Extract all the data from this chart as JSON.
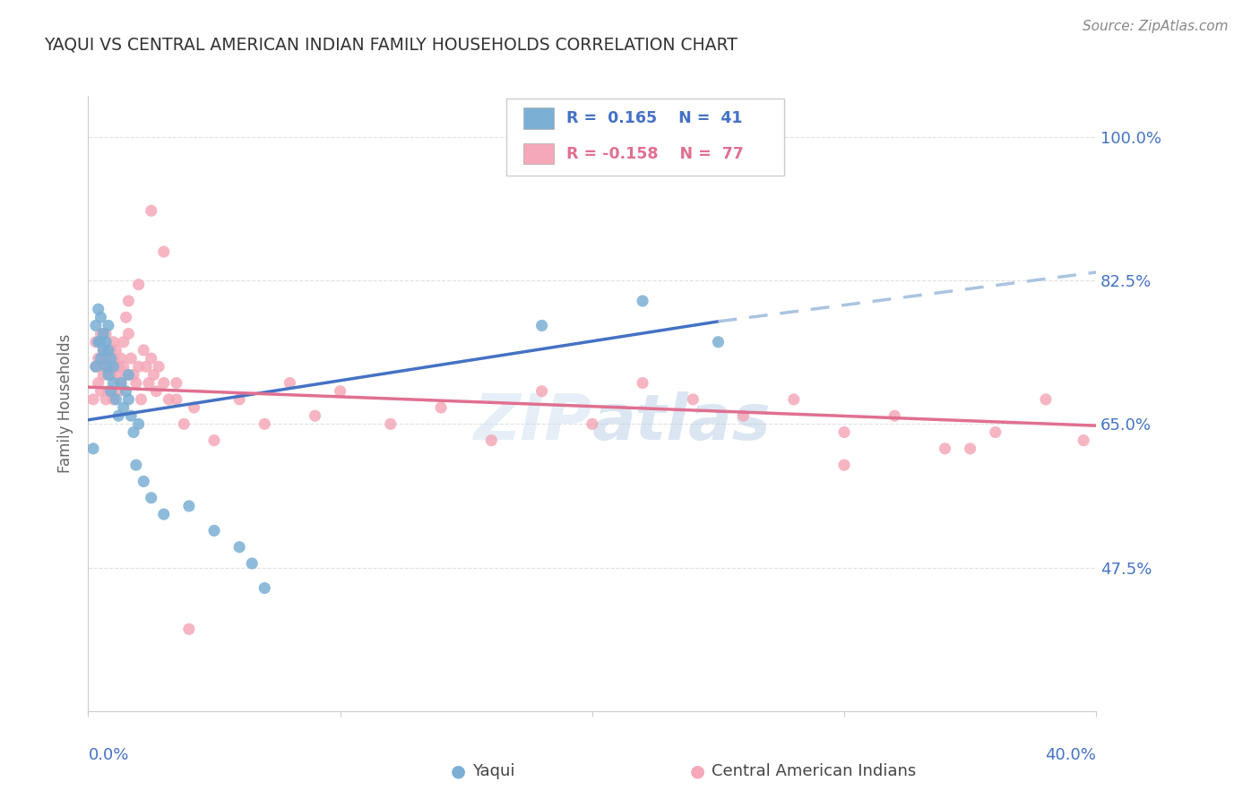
{
  "title": "YAQUI VS CENTRAL AMERICAN INDIAN FAMILY HOUSEHOLDS CORRELATION CHART",
  "source": "Source: ZipAtlas.com",
  "ylabel": "Family Households",
  "xlim": [
    0.0,
    0.4
  ],
  "ylim": [
    0.3,
    1.05
  ],
  "yticks": [
    0.475,
    0.65,
    0.825,
    1.0
  ],
  "ytick_labels": [
    "47.5%",
    "65.0%",
    "82.5%",
    "100.0%"
  ],
  "watermark": "ZIPatlas",
  "yaqui_color": "#7bafd4",
  "central_color": "#f4a8b8",
  "yaqui_line_color": "#4472c4",
  "central_line_color": "#e07090",
  "trend_dashed_color": "#aac4e0",
  "background_color": "#ffffff",
  "grid_color": "#e0e0e0",
  "title_color": "#333333",
  "tick_color": "#4472c4",
  "yaqui_x": [
    0.002,
    0.003,
    0.003,
    0.004,
    0.004,
    0.005,
    0.005,
    0.005,
    0.006,
    0.006,
    0.007,
    0.007,
    0.008,
    0.008,
    0.008,
    0.009,
    0.009,
    0.01,
    0.01,
    0.011,
    0.012,
    0.013,
    0.014,
    0.015,
    0.016,
    0.016,
    0.017,
    0.018,
    0.019,
    0.02,
    0.022,
    0.025,
    0.03,
    0.04,
    0.05,
    0.06,
    0.065,
    0.07,
    0.18,
    0.22,
    0.25
  ],
  "yaqui_y": [
    0.62,
    0.72,
    0.77,
    0.75,
    0.79,
    0.78,
    0.75,
    0.73,
    0.76,
    0.74,
    0.75,
    0.72,
    0.77,
    0.74,
    0.71,
    0.73,
    0.69,
    0.72,
    0.7,
    0.68,
    0.66,
    0.7,
    0.67,
    0.69,
    0.71,
    0.68,
    0.66,
    0.64,
    0.6,
    0.65,
    0.58,
    0.56,
    0.54,
    0.55,
    0.52,
    0.5,
    0.48,
    0.45,
    0.77,
    0.8,
    0.75
  ],
  "central_x": [
    0.002,
    0.003,
    0.003,
    0.004,
    0.004,
    0.005,
    0.005,
    0.005,
    0.006,
    0.006,
    0.007,
    0.007,
    0.007,
    0.008,
    0.008,
    0.009,
    0.009,
    0.01,
    0.01,
    0.01,
    0.011,
    0.011,
    0.012,
    0.012,
    0.013,
    0.013,
    0.014,
    0.014,
    0.015,
    0.015,
    0.016,
    0.016,
    0.017,
    0.018,
    0.019,
    0.02,
    0.021,
    0.022,
    0.023,
    0.024,
    0.025,
    0.026,
    0.027,
    0.028,
    0.03,
    0.032,
    0.035,
    0.038,
    0.042,
    0.05,
    0.06,
    0.07,
    0.08,
    0.09,
    0.1,
    0.12,
    0.14,
    0.16,
    0.18,
    0.2,
    0.22,
    0.24,
    0.26,
    0.28,
    0.3,
    0.32,
    0.34,
    0.36,
    0.38,
    0.395,
    0.025,
    0.03,
    0.02,
    0.035,
    0.04,
    0.3,
    0.35
  ],
  "central_y": [
    0.68,
    0.72,
    0.75,
    0.7,
    0.73,
    0.69,
    0.72,
    0.76,
    0.74,
    0.71,
    0.73,
    0.68,
    0.76,
    0.72,
    0.69,
    0.74,
    0.71,
    0.73,
    0.75,
    0.68,
    0.71,
    0.74,
    0.72,
    0.69,
    0.73,
    0.7,
    0.72,
    0.75,
    0.71,
    0.78,
    0.8,
    0.76,
    0.73,
    0.71,
    0.7,
    0.72,
    0.68,
    0.74,
    0.72,
    0.7,
    0.73,
    0.71,
    0.69,
    0.72,
    0.7,
    0.68,
    0.7,
    0.65,
    0.67,
    0.63,
    0.68,
    0.65,
    0.7,
    0.66,
    0.69,
    0.65,
    0.67,
    0.63,
    0.69,
    0.65,
    0.7,
    0.68,
    0.66,
    0.68,
    0.64,
    0.66,
    0.62,
    0.64,
    0.68,
    0.63,
    0.91,
    0.86,
    0.82,
    0.68,
    0.4,
    0.6,
    0.62
  ]
}
